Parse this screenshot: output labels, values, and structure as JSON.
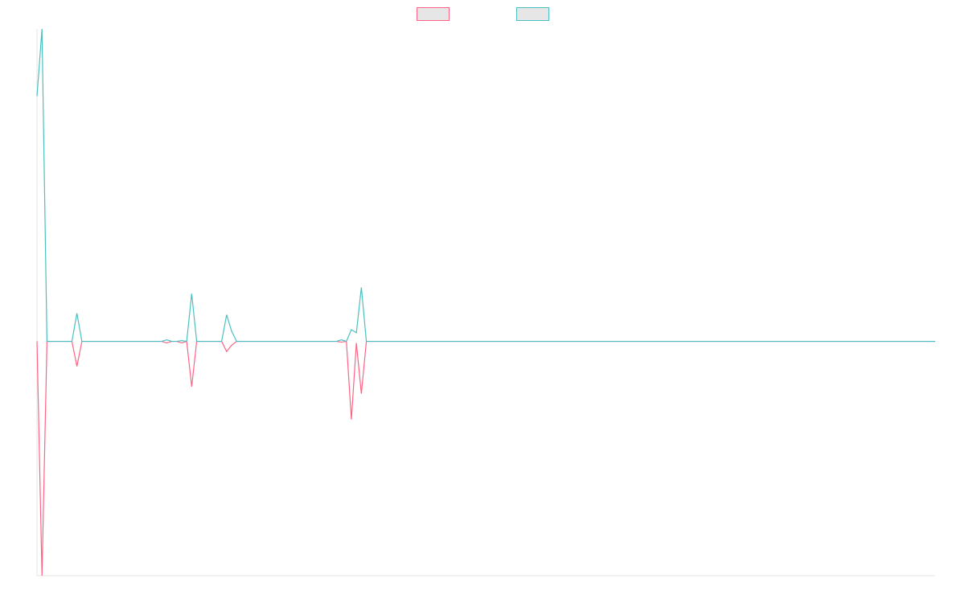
{
  "chart_data": {
    "type": "line",
    "x": [
      0,
      1,
      2,
      3,
      4,
      5,
      6,
      7,
      8,
      9,
      10,
      11,
      12,
      13,
      14,
      15,
      16,
      17,
      18,
      19,
      20,
      21,
      22,
      23,
      24,
      25,
      26,
      27,
      28,
      29,
      30,
      31,
      32,
      33,
      34,
      35,
      36,
      37,
      38,
      39,
      40,
      41,
      42,
      43,
      44,
      45,
      46,
      47,
      48,
      49,
      50,
      51,
      52,
      53,
      54,
      55,
      56,
      57,
      58,
      59,
      60,
      61,
      62,
      63,
      64,
      65,
      66,
      67,
      68,
      69,
      70,
      71,
      72,
      73,
      74,
      75,
      76,
      77,
      78,
      79,
      80,
      81,
      82,
      83,
      84,
      85,
      86,
      87,
      88,
      89,
      90,
      91,
      92,
      93,
      94,
      95,
      96,
      97,
      98,
      99,
      100,
      101,
      102,
      103,
      104,
      105,
      106,
      107,
      108,
      109,
      110,
      111,
      112,
      113,
      114,
      115,
      116,
      117,
      118,
      119,
      120,
      121,
      122,
      123,
      124,
      125,
      126,
      127,
      128,
      129,
      130,
      131,
      132,
      133,
      134,
      135,
      136,
      137,
      138,
      139,
      140,
      141,
      142,
      143,
      144,
      145,
      146,
      147,
      148,
      149,
      150,
      151,
      152,
      153,
      154,
      155,
      156,
      157,
      158,
      159,
      160,
      161,
      162,
      163,
      164,
      165,
      166,
      167,
      168,
      169,
      170,
      171,
      172,
      173,
      174,
      175,
      176,
      177,
      178,
      179,
      180
    ],
    "xlim": [
      0,
      180
    ],
    "ylim": [
      -300,
      400
    ],
    "legend": "top",
    "series": [
      {
        "color": "#ff6384",
        "values": [
          0,
          -300,
          0,
          0,
          0,
          0,
          0,
          0,
          -32,
          0,
          0,
          0,
          0,
          0,
          0,
          0,
          0,
          0,
          0,
          0,
          0,
          0,
          0,
          0,
          0,
          0,
          -2,
          0,
          0,
          -2,
          0,
          -58,
          0,
          0,
          0,
          0,
          0,
          0,
          -13,
          -5,
          0,
          0,
          0,
          0,
          0,
          0,
          0,
          0,
          0,
          0,
          0,
          0,
          0,
          0,
          0,
          0,
          0,
          0,
          0,
          0,
          0,
          -1,
          0,
          -100,
          -2,
          -67,
          0,
          0,
          0,
          0,
          0,
          0,
          0,
          0,
          0,
          0,
          0,
          0,
          0,
          0,
          0,
          0,
          0,
          0,
          0,
          0,
          0,
          0,
          0,
          0,
          0,
          0,
          0,
          0,
          0,
          0,
          0,
          0,
          0,
          0,
          0,
          0,
          0,
          0,
          0,
          0,
          0,
          0,
          0,
          0,
          0,
          0,
          0,
          0,
          0,
          0,
          0,
          0,
          0,
          0,
          0,
          0,
          0,
          0,
          0,
          0,
          0,
          0,
          0,
          0,
          0,
          0,
          0,
          0,
          0,
          0,
          0,
          0,
          0,
          0,
          0,
          0,
          0,
          0,
          0,
          0,
          0,
          0,
          0,
          0,
          0,
          0,
          0,
          0,
          0,
          0,
          0,
          0,
          0,
          0,
          0,
          0,
          0,
          0,
          0,
          0,
          0,
          0,
          0,
          0,
          0,
          0,
          0,
          0,
          0,
          0,
          0,
          0,
          0,
          0,
          0
        ]
      },
      {
        "color": "#4bc0c0",
        "values": [
          314,
          400,
          0,
          0,
          0,
          0,
          0,
          0,
          36,
          0,
          0,
          0,
          0,
          0,
          0,
          0,
          0,
          0,
          0,
          0,
          0,
          0,
          0,
          0,
          0,
          0,
          2,
          0,
          0,
          1,
          0,
          61,
          0,
          0,
          0,
          0,
          0,
          0,
          34,
          13,
          0,
          0,
          0,
          0,
          0,
          0,
          0,
          0,
          0,
          0,
          0,
          0,
          0,
          0,
          0,
          0,
          0,
          0,
          0,
          0,
          0,
          2,
          0,
          15,
          11,
          69,
          0,
          0,
          0,
          0,
          0,
          0,
          0,
          0,
          0,
          0,
          0,
          0,
          0,
          0,
          0,
          0,
          0,
          0,
          0,
          0,
          0,
          0,
          0,
          0,
          0,
          0,
          0,
          0,
          0,
          0,
          0,
          0,
          0,
          0,
          0,
          0,
          0,
          0,
          0,
          0,
          0,
          0,
          0,
          0,
          0,
          0,
          0,
          0,
          0,
          0,
          0,
          0,
          0,
          0,
          0,
          0,
          0,
          0,
          0,
          0,
          0,
          0,
          0,
          0,
          0,
          0,
          0,
          0,
          0,
          0,
          0,
          0,
          0,
          0,
          0,
          0,
          0,
          0,
          0,
          0,
          0,
          0,
          0,
          0,
          0,
          0,
          0,
          0,
          0,
          0,
          0,
          0,
          0,
          0,
          0,
          0,
          0,
          0,
          0,
          0,
          0,
          0,
          0,
          0,
          0,
          0,
          0,
          0,
          0,
          0,
          0,
          0,
          0,
          0,
          0
        ]
      }
    ]
  }
}
